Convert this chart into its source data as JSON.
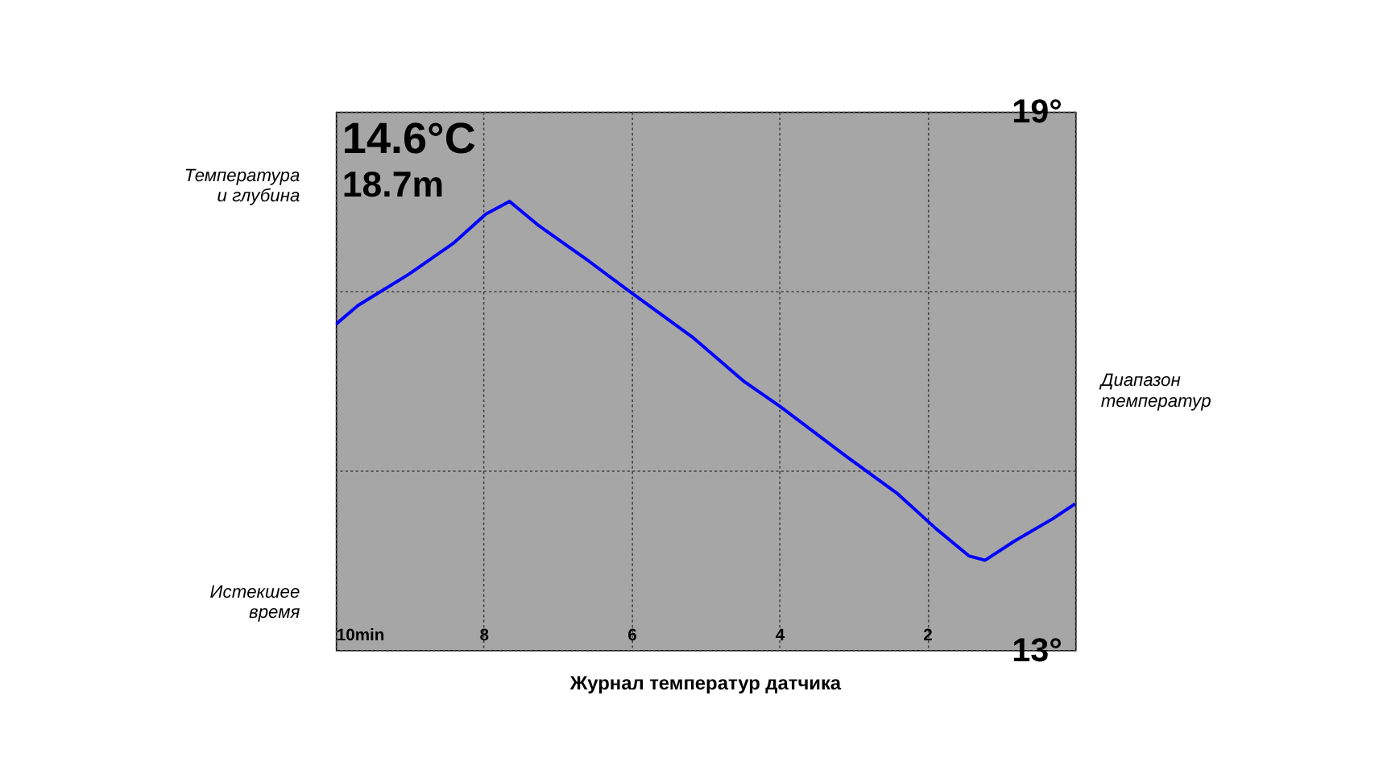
{
  "chart_data": {
    "type": "line",
    "title": "Журнал температур датчика",
    "x": [
      10,
      9.7,
      9.01,
      8.4,
      7.97,
      7.65,
      7.27,
      6.57,
      6.0,
      5.18,
      4.49,
      4.0,
      3.1,
      2.4,
      1.88,
      1.44,
      1.22,
      0.83,
      0.31,
      0
    ],
    "series": [
      {
        "color": "#0000ff",
        "values": [
          16.63,
          16.84,
          17.19,
          17.54,
          17.86,
          18.0,
          17.74,
          17.33,
          16.98,
          16.49,
          16.0,
          15.72,
          15.16,
          14.74,
          14.35,
          14.05,
          14.0,
          14.21,
          14.46,
          14.63
        ]
      }
    ],
    "xlim": [
      10,
      0
    ],
    "ylim": [
      13,
      19
    ],
    "xticks": [
      {
        "value": 10,
        "label": "10min"
      },
      8,
      6,
      4,
      2,
      {
        "value": 0,
        "label": null
      }
    ],
    "yticks": [
      {
        "value": 13,
        "label": "13°"
      },
      {
        "value": 15,
        "label": null
      },
      {
        "value": 17,
        "label": null
      },
      {
        "value": 19,
        "label": "19°"
      }
    ],
    "grid": true,
    "marker": "none",
    "line_style": "solid",
    "annotations": [
      "14.6°C",
      "18.7m",
      "Температура\nи глубина",
      "Истекшее\nвремя",
      "Диапазон\nтемператур"
    ]
  }
}
